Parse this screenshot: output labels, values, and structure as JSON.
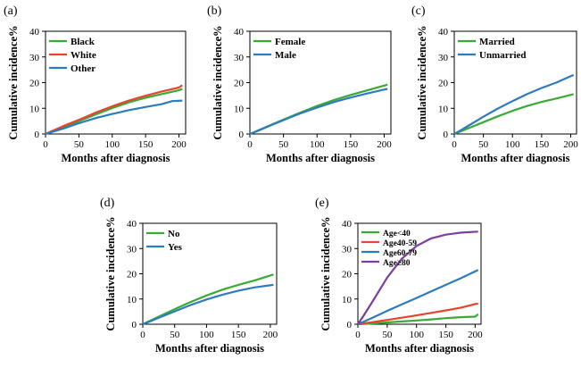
{
  "chart_data": [
    {
      "id": "a",
      "type": "line",
      "panel_label": "(a)",
      "xlabel": "Months after diagnosis",
      "ylabel": "Cumulative incidence%",
      "xlim": [
        0,
        210
      ],
      "ylim": [
        0,
        40
      ],
      "xticks": [
        "0",
        "50",
        "100",
        "150",
        "200"
      ],
      "yticks": [
        "0",
        "10",
        "20",
        "30",
        "40"
      ],
      "legend_position": "top-left",
      "series": [
        {
          "name": "Black",
          "color": "#3aaa35",
          "x": [
            0,
            10,
            25,
            50,
            75,
            100,
            125,
            150,
            175,
            200,
            205
          ],
          "values": [
            0,
            1.0,
            2.5,
            5.0,
            7.6,
            10.1,
            12.3,
            14.1,
            15.6,
            17.0,
            17.6
          ]
        },
        {
          "name": "White",
          "color": "#e8432d",
          "x": [
            0,
            10,
            25,
            50,
            75,
            100,
            125,
            150,
            175,
            200,
            205
          ],
          "values": [
            0,
            1.2,
            2.9,
            5.5,
            8.3,
            10.8,
            13.0,
            14.9,
            16.6,
            18.1,
            19.0
          ]
        },
        {
          "name": "Other",
          "color": "#2c7bbf",
          "x": [
            0,
            10,
            25,
            50,
            75,
            100,
            125,
            150,
            175,
            190,
            205
          ],
          "values": [
            0,
            0.8,
            2.0,
            4.2,
            6.2,
            7.8,
            9.3,
            10.5,
            11.7,
            12.8,
            13.0
          ]
        }
      ]
    },
    {
      "id": "b",
      "type": "line",
      "panel_label": "(b)",
      "xlabel": "Months after diagnosis",
      "ylabel": "Cumulative incidence%",
      "xlim": [
        0,
        210
      ],
      "ylim": [
        0,
        40
      ],
      "xticks": [
        "0",
        "50",
        "100",
        "150",
        "200"
      ],
      "yticks": [
        "0",
        "10",
        "20",
        "30",
        "40"
      ],
      "legend_position": "top-left",
      "series": [
        {
          "name": "Female",
          "color": "#3aaa35",
          "x": [
            0,
            10,
            25,
            50,
            75,
            100,
            125,
            150,
            175,
            205
          ],
          "values": [
            0,
            1.1,
            2.8,
            5.6,
            8.3,
            10.9,
            13.2,
            15.2,
            17.0,
            19.2
          ]
        },
        {
          "name": "Male",
          "color": "#2c7bbf",
          "x": [
            0,
            10,
            25,
            50,
            75,
            100,
            125,
            150,
            175,
            205
          ],
          "values": [
            0,
            1.0,
            2.7,
            5.4,
            8.0,
            10.3,
            12.4,
            14.2,
            15.8,
            17.6
          ]
        }
      ]
    },
    {
      "id": "c",
      "type": "line",
      "panel_label": "(c)",
      "xlabel": "Months after diagnosis",
      "ylabel": "Cumulative incidence%",
      "xlim": [
        0,
        210
      ],
      "ylim": [
        0,
        40
      ],
      "xticks": [
        "0",
        "50",
        "100",
        "150",
        "200"
      ],
      "yticks": [
        "0",
        "10",
        "20",
        "30",
        "40"
      ],
      "legend_position": "top-left",
      "series": [
        {
          "name": "Married",
          "color": "#3aaa35",
          "x": [
            0,
            10,
            25,
            50,
            75,
            100,
            125,
            150,
            175,
            205
          ],
          "values": [
            0,
            0.9,
            2.3,
            4.6,
            6.9,
            9.0,
            10.9,
            12.5,
            13.8,
            15.5
          ]
        },
        {
          "name": "Unmarried",
          "color": "#2c7bbf",
          "x": [
            0,
            10,
            25,
            50,
            75,
            100,
            125,
            150,
            175,
            205
          ],
          "values": [
            0,
            1.3,
            3.3,
            6.7,
            9.9,
            12.8,
            15.5,
            17.9,
            20.0,
            23.0
          ]
        }
      ]
    },
    {
      "id": "d",
      "type": "line",
      "panel_label": "(d)",
      "xlabel": "Months after diagnosis",
      "ylabel": "Cumulative incidence%",
      "xlim": [
        0,
        210
      ],
      "ylim": [
        0,
        40
      ],
      "xticks": [
        "0",
        "50",
        "100",
        "150",
        "200"
      ],
      "yticks": [
        "0",
        "10",
        "20",
        "30",
        "40"
      ],
      "legend_position": "top-left",
      "series": [
        {
          "name": "No",
          "color": "#3aaa35",
          "x": [
            0,
            10,
            25,
            50,
            75,
            100,
            125,
            150,
            175,
            205
          ],
          "values": [
            0,
            1.2,
            3.0,
            6.0,
            8.8,
            11.4,
            13.7,
            15.6,
            17.3,
            19.7
          ]
        },
        {
          "name": "Yes",
          "color": "#2c7bbf",
          "x": [
            0,
            10,
            25,
            50,
            75,
            100,
            125,
            150,
            175,
            205
          ],
          "values": [
            0,
            1.0,
            2.6,
            5.1,
            7.6,
            9.8,
            11.7,
            13.3,
            14.6,
            15.6
          ]
        }
      ]
    },
    {
      "id": "e",
      "type": "line",
      "panel_label": "(e)",
      "xlabel": "Months after diagnosis",
      "ylabel": "Cumulative incidence%",
      "xlim": [
        0,
        210
      ],
      "ylim": [
        0,
        40
      ],
      "xticks": [
        "0",
        "50",
        "100",
        "150",
        "200"
      ],
      "yticks": [
        "0",
        "10",
        "20",
        "30",
        "40"
      ],
      "legend_position": "top-left",
      "series": [
        {
          "name": "Age<40",
          "color": "#3aaa35",
          "x": [
            0,
            25,
            50,
            75,
            100,
            125,
            150,
            175,
            200,
            205
          ],
          "values": [
            0,
            0.3,
            0.7,
            1.1,
            1.5,
            1.9,
            2.4,
            2.8,
            3.0,
            4.0
          ]
        },
        {
          "name": "Age40-59",
          "color": "#e8432d",
          "x": [
            0,
            25,
            50,
            75,
            100,
            125,
            150,
            175,
            200,
            205
          ],
          "values": [
            0,
            0.8,
            1.7,
            2.6,
            3.5,
            4.5,
            5.5,
            6.5,
            8.0,
            8.2
          ]
        },
        {
          "name": "Age60-79",
          "color": "#2c7bbf",
          "x": [
            0,
            25,
            50,
            75,
            100,
            125,
            150,
            175,
            205
          ],
          "values": [
            0,
            2.6,
            5.3,
            7.9,
            10.4,
            13.0,
            15.6,
            18.2,
            21.5
          ]
        },
        {
          "name": "Age≥80",
          "color": "#7b3f9e",
          "x": [
            0,
            10,
            25,
            50,
            75,
            100,
            125,
            150,
            175,
            205
          ],
          "values": [
            0,
            3.5,
            9.0,
            18.5,
            26.0,
            31.0,
            34.0,
            35.5,
            36.3,
            36.7
          ]
        }
      ]
    }
  ]
}
